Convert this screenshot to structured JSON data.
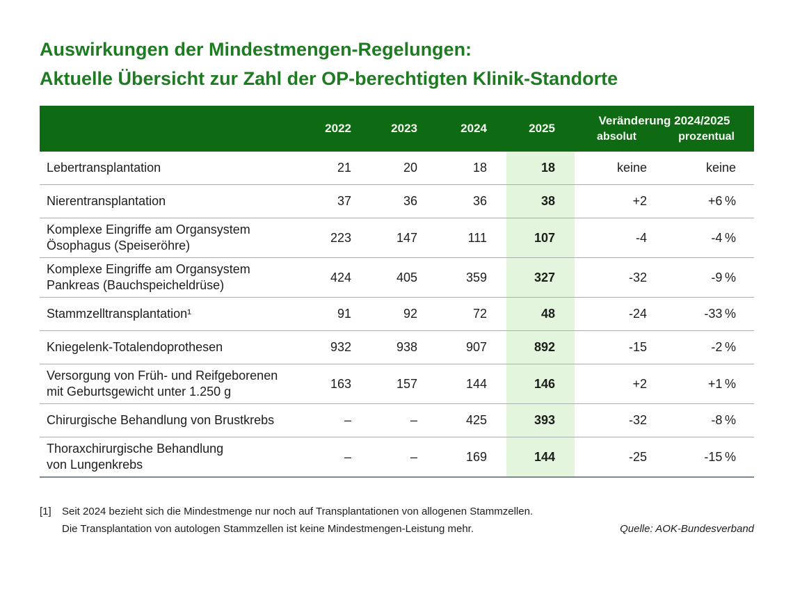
{
  "title": {
    "line1": "Auswirkungen der Mindestmengen-Regelungen:",
    "line2": "Aktuelle Übersicht zur Zahl der OP-berechtigten Klinik-Standorte"
  },
  "chart_data": {
    "type": "table",
    "title": "Auswirkungen der Mindestmengen-Regelungen: Aktuelle Übersicht zur Zahl der OP-berechtigten Klinik-Standorte",
    "columns": {
      "years": [
        "2022",
        "2023",
        "2024",
        "2025"
      ],
      "change_title": "Veränderung 2024/2025",
      "change_absolut": "absolut",
      "change_prozentual": "prozentual"
    },
    "highlighted_column": "2025",
    "rows": [
      {
        "label": [
          "Lebertransplantation"
        ],
        "y2022": "21",
        "y2023": "20",
        "y2024": "18",
        "y2025": "18",
        "absolut": "keine",
        "prozentual": "keine"
      },
      {
        "label": [
          "Nierentransplantation"
        ],
        "y2022": "37",
        "y2023": "36",
        "y2024": "36",
        "y2025": "38",
        "absolut": "+2",
        "prozentual": "+6 %"
      },
      {
        "label": [
          "Komplexe Eingriffe am Organsystem",
          "Ösophagus (Speiseröhre)"
        ],
        "y2022": "223",
        "y2023": "147",
        "y2024": "111",
        "y2025": "107",
        "absolut": "-4",
        "prozentual": "-4 %"
      },
      {
        "label": [
          "Komplexe Eingriffe am Organsystem",
          "Pankreas (Bauchspeicheldrüse)"
        ],
        "y2022": "424",
        "y2023": "405",
        "y2024": "359",
        "y2025": "327",
        "absolut": "-32",
        "prozentual": "-9 %"
      },
      {
        "label": [
          "Stammzelltransplantation¹"
        ],
        "y2022": "91",
        "y2023": "92",
        "y2024": "72",
        "y2025": "48",
        "absolut": "-24",
        "prozentual": "-33 %"
      },
      {
        "label": [
          "Kniegelenk-Totalendoprothesen"
        ],
        "y2022": "932",
        "y2023": "938",
        "y2024": "907",
        "y2025": "892",
        "absolut": "-15",
        "prozentual": "-2 %"
      },
      {
        "label": [
          "Versorgung von Früh- und Reifgeborenen",
          "mit Geburtsgewicht unter 1.250 g"
        ],
        "y2022": "163",
        "y2023": "157",
        "y2024": "144",
        "y2025": "146",
        "absolut": "+2",
        "prozentual": "+1 %"
      },
      {
        "label": [
          "Chirurgische Behandlung von Brustkrebs"
        ],
        "y2022": "–",
        "y2023": "–",
        "y2024": "425",
        "y2025": "393",
        "absolut": "-32",
        "prozentual": "-8 %"
      },
      {
        "label": [
          "Thoraxchirurgische Behandlung",
          "von Lungenkrebs"
        ],
        "y2022": "–",
        "y2023": "–",
        "y2024": "169",
        "y2025": "144",
        "absolut": "-25",
        "prozentual": "-15 %"
      }
    ]
  },
  "footnote": {
    "marker": "[1]",
    "line1": "Seit 2024 bezieht sich die Mindestmenge nur noch auf Transplantationen von allogenen Stammzellen.",
    "line2": "Die Transplantation von autologen Stammzellen ist keine Mindestmengen-Leistung mehr."
  },
  "source": "Quelle: AOK-Bundesverband",
  "colors": {
    "title_green": "#1e7b22",
    "header_green": "#0e6b14",
    "highlight_green": "#e4f5de",
    "text_color": "#1d1d1b",
    "separator": "#a7acae",
    "bottom_border": "#7d878d"
  }
}
